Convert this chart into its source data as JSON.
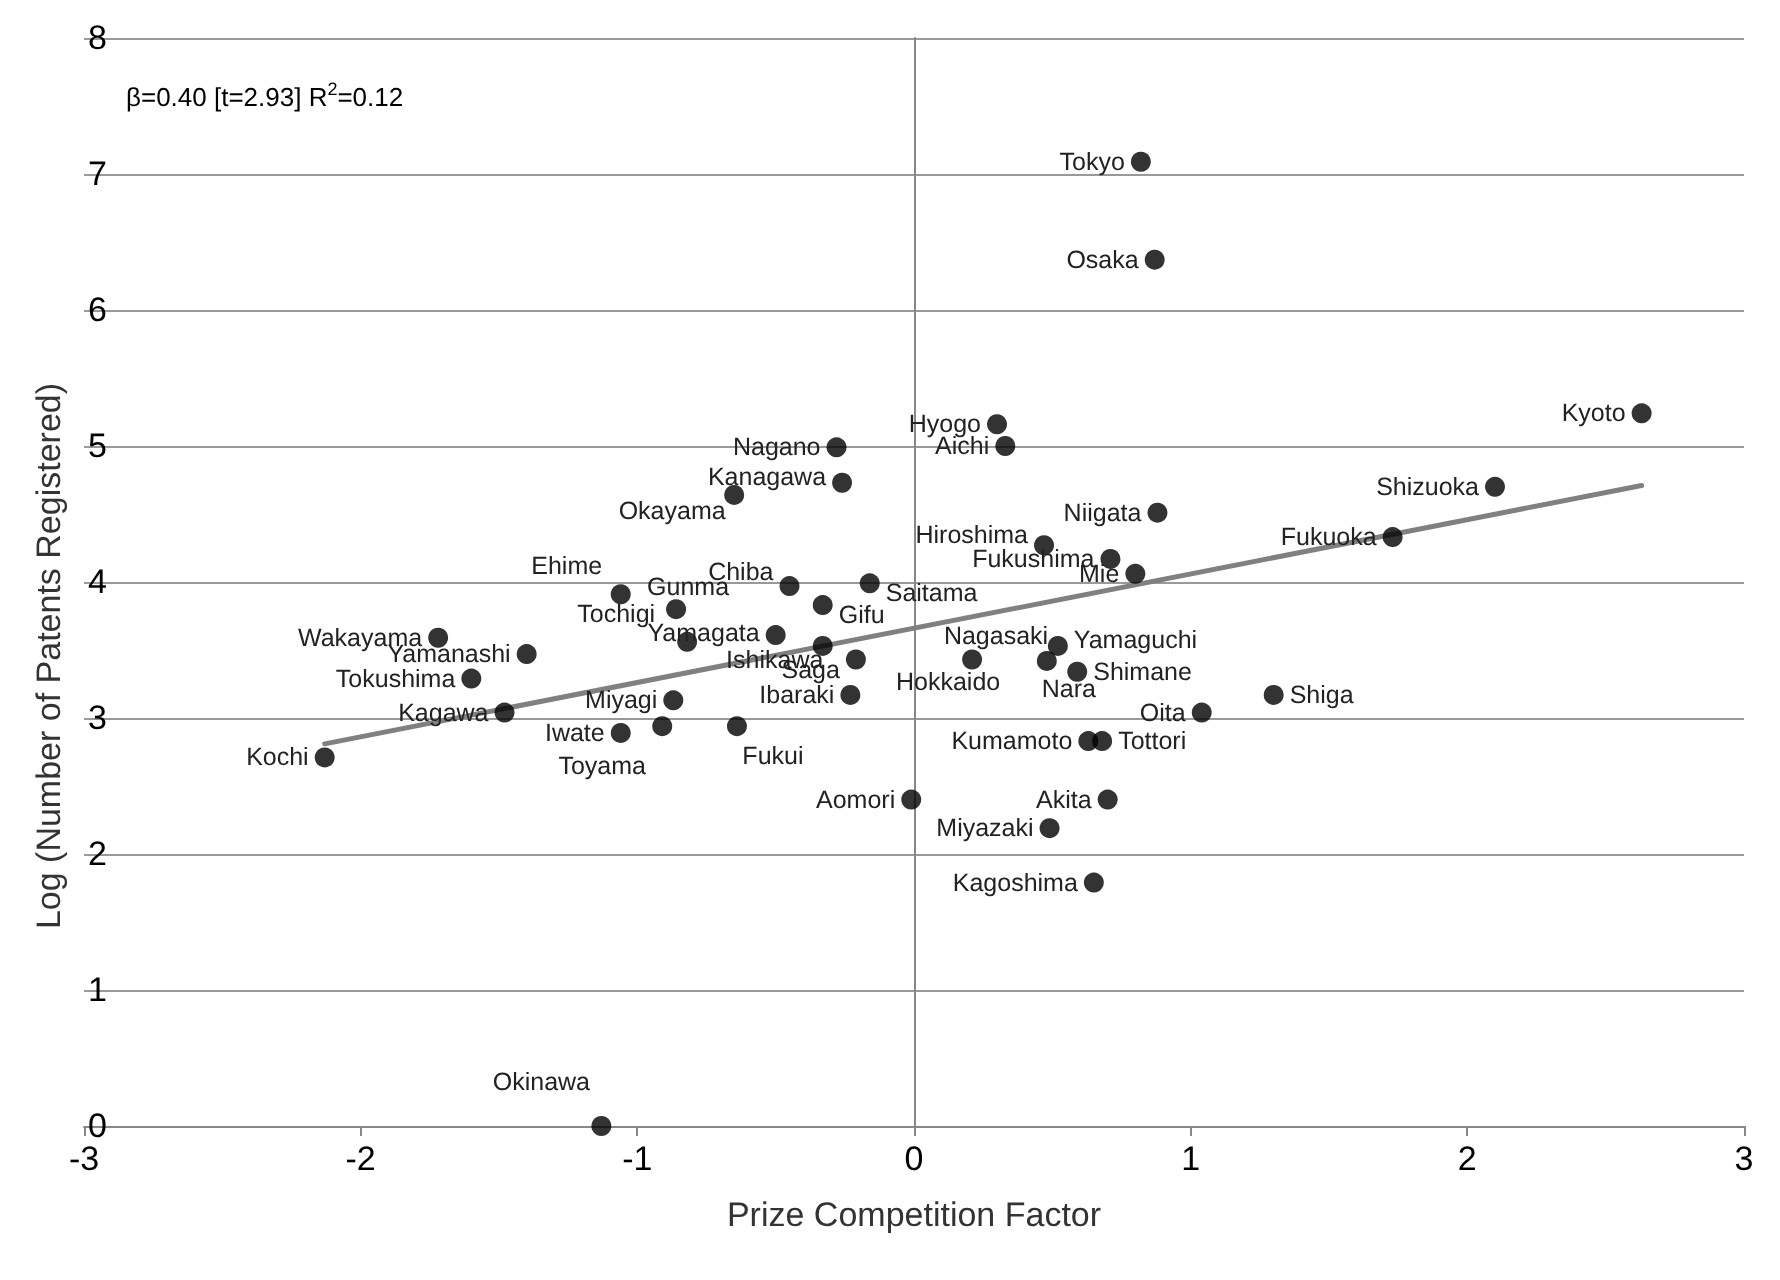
{
  "chart_data": {
    "type": "scatter",
    "xlabel": "Prize Competition Factor",
    "ylabel": "Log (Number of Patents Registered)",
    "xlim": [
      -3,
      3
    ],
    "xticks": [
      -3,
      -2,
      -1,
      0,
      1,
      2,
      3
    ],
    "ylim": [
      0,
      8
    ],
    "yticks": [
      0,
      1,
      2,
      3,
      4,
      5,
      6,
      7,
      8
    ],
    "grid": "y",
    "marker": "circle",
    "series": [
      {
        "color": "#000000",
        "x": [
          0.82,
          0.87,
          2.63,
          0.3,
          0.33,
          -0.28,
          -0.26,
          -0.65,
          2.1,
          0.88,
          0.47,
          0.71,
          1.73,
          0.8,
          -1.06,
          -0.45,
          -0.16,
          -0.86,
          -0.33,
          -0.82,
          -0.5,
          -0.33,
          -0.21,
          -1.72,
          -1.4,
          -1.6,
          0.47,
          0.52,
          0.21,
          0.48,
          0.59,
          -0.87,
          -0.23,
          -1.48,
          1.04,
          1.3,
          -1.06,
          -0.91,
          -0.64,
          0.63,
          0.68,
          -2.13,
          -0.01,
          0.7,
          0.49,
          0.65,
          -1.13
        ],
        "values": [
          7.09,
          6.37,
          5.24,
          5.16,
          5.0,
          4.99,
          4.73,
          4.64,
          4.7,
          4.51,
          4.27,
          4.17,
          4.33,
          4.06,
          3.91,
          3.97,
          3.99,
          3.8,
          3.83,
          3.56,
          3.61,
          3.53,
          3.43,
          3.59,
          3.47,
          3.29,
          null,
          3.53,
          3.43,
          3.42,
          3.34,
          3.13,
          3.17,
          3.04,
          3.04,
          3.17,
          2.89,
          2.94,
          2.94,
          2.83,
          2.83,
          2.71,
          2.4,
          2.4,
          2.19,
          1.79,
          0.0
        ]
      },
      {
        "type": "line",
        "color": "#808080",
        "line_style": "solid",
        "marker": "none",
        "x": [
          -2.13,
          2.63
        ],
        "values": [
          2.81,
          4.71
        ]
      }
    ],
    "annotations": [
      "β=0.40 [t=2.93] R$^{2}$=0.12",
      {
        "text": "Tokyo",
        "x": 0.82,
        "y": 7.09
      },
      {
        "text": "Osaka",
        "x": 0.87,
        "y": 6.37
      },
      {
        "text": "Kyoto",
        "x": 2.63,
        "y": 5.24
      },
      {
        "text": "Hyogo",
        "x": 0.3,
        "y": 5.16
      },
      {
        "text": "Aichi",
        "x": 0.33,
        "y": 5.0
      },
      {
        "text": "Nagano",
        "x": -0.28,
        "y": 4.99
      },
      {
        "text": "Kanagawa",
        "x": -0.26,
        "y": 4.73
      },
      {
        "text": "Okayama",
        "x": -0.65,
        "y": 4.64
      },
      {
        "text": "Shizuoka",
        "x": 2.1,
        "y": 4.7
      },
      {
        "text": "Niigata",
        "x": 0.88,
        "y": 4.51
      },
      {
        "text": "Hiroshima",
        "x": 0.47,
        "y": 4.27
      },
      {
        "text": "Fukushima",
        "x": 0.71,
        "y": 4.17
      },
      {
        "text": "Fukuoka",
        "x": 1.73,
        "y": 4.33
      },
      {
        "text": "Mie",
        "x": 0.8,
        "y": 4.06
      },
      {
        "text": "Ehime",
        "x": -1.06,
        "y": 3.91
      },
      {
        "text": "Chiba",
        "x": -0.45,
        "y": 3.97
      },
      {
        "text": "Saitama",
        "x": -0.16,
        "y": 3.99
      },
      {
        "text": "Gunma",
        "x": -0.86,
        "y": 3.8
      },
      {
        "text": "Gifu",
        "x": -0.33,
        "y": 3.83
      },
      {
        "text": "Tochigi",
        "x": -0.82,
        "y": 3.56
      },
      {
        "text": "Yamagata",
        "x": -0.5,
        "y": 3.61
      },
      {
        "text": "Ishikawa",
        "x": -0.33,
        "y": 3.53
      },
      {
        "text": "Saga",
        "x": -0.21,
        "y": 3.43
      },
      {
        "text": "Wakayama",
        "x": -1.72,
        "y": 3.59
      },
      {
        "text": "Yamanashi",
        "x": -1.4,
        "y": 3.47
      },
      {
        "text": "Tokushima",
        "x": -1.6,
        "y": 3.29
      },
      {
        "text": "Nagasaki",
        "x": 0.47,
        "y": 3.44
      },
      {
        "text": "Yamaguchi",
        "x": 0.52,
        "y": 3.53
      },
      {
        "text": "Hokkaido",
        "x": 0.21,
        "y": 3.43
      },
      {
        "text": "Nara",
        "x": 0.48,
        "y": 3.42
      },
      {
        "text": "Shimane",
        "x": 0.59,
        "y": 3.34
      },
      {
        "text": "Miyagi",
        "x": -0.87,
        "y": 3.13
      },
      {
        "text": "Ibaraki",
        "x": -0.23,
        "y": 3.17
      },
      {
        "text": "Kagawa",
        "x": -1.48,
        "y": 3.04
      },
      {
        "text": "Oita",
        "x": 1.04,
        "y": 3.04
      },
      {
        "text": "Shiga",
        "x": 1.3,
        "y": 3.17
      },
      {
        "text": "Iwate",
        "x": -1.06,
        "y": 2.89
      },
      {
        "text": "Toyama",
        "x": -0.91,
        "y": 2.94
      },
      {
        "text": "Fukui",
        "x": -0.64,
        "y": 2.94
      },
      {
        "text": "Kumamoto",
        "x": 0.63,
        "y": 2.83
      },
      {
        "text": "Tottori",
        "x": 0.68,
        "y": 2.83
      },
      {
        "text": "Kochi",
        "x": -2.13,
        "y": 2.71
      },
      {
        "text": "Aomori",
        "x": -0.01,
        "y": 2.4
      },
      {
        "text": "Akita",
        "x": 0.7,
        "y": 2.4
      },
      {
        "text": "Miyazaki",
        "x": 0.49,
        "y": 2.19
      },
      {
        "text": "Kagoshima",
        "x": 0.65,
        "y": 1.79
      },
      {
        "text": "Okinawa",
        "x": -1.13,
        "y": 0.0
      }
    ]
  }
}
